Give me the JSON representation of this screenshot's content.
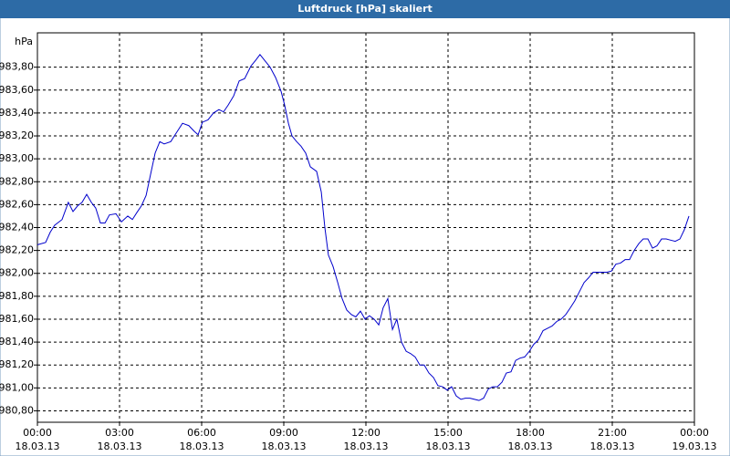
{
  "chart_data": {
    "type": "line",
    "title": "Luftdruck [hPa] skaliert",
    "ylabel": "hPa",
    "x": [
      0,
      0.3,
      0.47,
      0.63,
      0.9,
      1.13,
      1.3,
      1.47,
      1.63,
      1.8,
      1.97,
      2.13,
      2.3,
      2.47,
      2.63,
      2.87,
      3.07,
      3.3,
      3.47,
      3.63,
      3.8,
      3.97,
      4.13,
      4.3,
      4.47,
      4.63,
      4.87,
      5.03,
      5.3,
      5.53,
      5.73,
      5.87,
      6.03,
      6.23,
      6.43,
      6.63,
      6.8,
      6.97,
      7.17,
      7.37,
      7.57,
      7.8,
      7.97,
      8.13,
      8.3,
      8.5,
      8.7,
      8.9,
      9.03,
      9.17,
      9.3,
      9.47,
      9.63,
      9.8,
      9.97,
      10.2,
      10.37,
      10.5,
      10.63,
      10.8,
      10.97,
      11.13,
      11.3,
      11.47,
      11.63,
      11.8,
      11.97,
      12.13,
      12.3,
      12.47,
      12.63,
      12.8,
      12.97,
      13.13,
      13.3,
      13.47,
      13.63,
      13.8,
      13.97,
      14.13,
      14.3,
      14.47,
      14.63,
      14.8,
      14.97,
      15.13,
      15.3,
      15.47,
      15.63,
      15.8,
      15.97,
      16.13,
      16.3,
      16.47,
      16.63,
      16.8,
      16.97,
      17.13,
      17.3,
      17.47,
      17.63,
      17.8,
      17.97,
      18.13,
      18.3,
      18.47,
      18.63,
      18.8,
      18.97,
      19.13,
      19.3,
      19.47,
      19.63,
      19.8,
      19.97,
      20.13,
      20.3,
      20.47,
      20.63,
      20.8,
      20.97,
      21.13,
      21.3,
      21.47,
      21.63,
      21.8,
      21.97,
      22.13,
      22.3,
      22.47,
      22.63,
      22.8,
      22.97,
      23.13,
      23.3,
      23.47,
      23.63,
      23.8
    ],
    "series": [
      {
        "name": "Luftdruck",
        "color": "#0000cc",
        "values": [
          982.25,
          982.27,
          982.36,
          982.42,
          982.47,
          982.62,
          982.54,
          982.59,
          982.62,
          982.69,
          982.62,
          982.57,
          982.44,
          982.44,
          982.51,
          982.52,
          982.45,
          982.5,
          982.47,
          982.53,
          982.59,
          982.68,
          982.86,
          983.05,
          983.15,
          983.13,
          983.15,
          983.21,
          983.31,
          983.29,
          983.24,
          983.21,
          983.32,
          983.34,
          983.4,
          983.43,
          983.41,
          983.47,
          983.55,
          983.68,
          983.7,
          983.81,
          983.86,
          983.91,
          983.86,
          983.8,
          983.71,
          983.59,
          983.47,
          983.31,
          983.2,
          983.15,
          983.11,
          983.05,
          982.93,
          982.89,
          982.71,
          982.4,
          982.16,
          982.06,
          981.92,
          981.78,
          981.68,
          981.64,
          981.62,
          981.67,
          981.6,
          981.63,
          981.6,
          981.55,
          981.7,
          981.78,
          981.51,
          981.6,
          981.4,
          981.32,
          981.3,
          981.27,
          981.2,
          981.2,
          981.13,
          981.09,
          981.02,
          981.01,
          980.98,
          981.01,
          980.93,
          980.9,
          980.91,
          980.91,
          980.9,
          980.89,
          980.91,
          980.99,
          981.01,
          981.01,
          981.05,
          981.13,
          981.14,
          981.24,
          981.26,
          981.27,
          981.32,
          981.38,
          981.42,
          981.5,
          981.52,
          981.54,
          981.58,
          981.6,
          981.64,
          981.7,
          981.76,
          981.84,
          981.92,
          981.96,
          982.01,
          982.01,
          982.01,
          982.01,
          982.02,
          982.08,
          982.09,
          982.12,
          982.12,
          982.2,
          982.26,
          982.3,
          982.3,
          982.22,
          982.24,
          982.3,
          982.3,
          982.29,
          982.28,
          982.3,
          982.38,
          982.5
        ]
      }
    ],
    "xlim": [
      0,
      24
    ],
    "xticks": [
      {
        "value": 0,
        "label": [
          "00:00",
          "18.03.13"
        ]
      },
      {
        "value": 3,
        "label": [
          "03:00",
          "18.03.13"
        ]
      },
      {
        "value": 6,
        "label": [
          "06:00",
          "18.03.13"
        ]
      },
      {
        "value": 9,
        "label": [
          "09:00",
          "18.03.13"
        ]
      },
      {
        "value": 12,
        "label": [
          "12:00",
          "18.03.13"
        ]
      },
      {
        "value": 15,
        "label": [
          "15:00",
          "18.03.13"
        ]
      },
      {
        "value": 18,
        "label": [
          "18:00",
          "18.03.13"
        ]
      },
      {
        "value": 21,
        "label": [
          "21:00",
          "18.03.13"
        ]
      },
      {
        "value": 24,
        "label": [
          "00:00",
          "19.03.13"
        ]
      }
    ],
    "ylim": [
      980.7,
      984.1
    ],
    "yticks": [
      {
        "value": 980.8,
        "label": "980,80"
      },
      {
        "value": 981.0,
        "label": "981,00"
      },
      {
        "value": 981.2,
        "label": "981,20"
      },
      {
        "value": 981.4,
        "label": "981,40"
      },
      {
        "value": 981.6,
        "label": "981,60"
      },
      {
        "value": 981.8,
        "label": "981,80"
      },
      {
        "value": 982.0,
        "label": "982,00"
      },
      {
        "value": 982.2,
        "label": "982,20"
      },
      {
        "value": 982.4,
        "label": "982,40"
      },
      {
        "value": 982.6,
        "label": "982,60"
      },
      {
        "value": 982.8,
        "label": "982,80"
      },
      {
        "value": 983.0,
        "label": "983,00"
      },
      {
        "value": 983.2,
        "label": "983,20"
      },
      {
        "value": 983.4,
        "label": "983,40"
      },
      {
        "value": 983.6,
        "label": "983,60"
      },
      {
        "value": 983.8,
        "label": "983,80"
      }
    ],
    "grid": true
  }
}
